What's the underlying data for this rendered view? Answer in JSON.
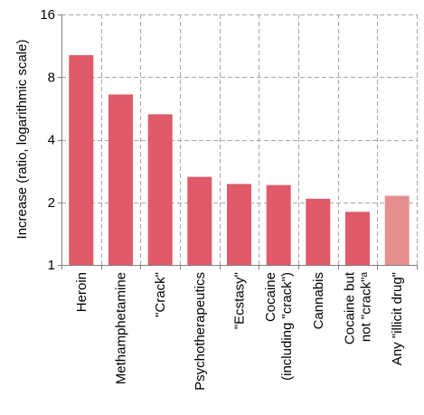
{
  "chart_data": {
    "type": "bar",
    "categories": [
      [
        "Heroin"
      ],
      [
        "Methamphetamine"
      ],
      [
        "\"Crack\""
      ],
      [
        "Psychotherapeutics"
      ],
      [
        "\"Ecstasy\""
      ],
      [
        "Cocaine",
        "(including \"crack\")"
      ],
      [
        "Cannabis"
      ],
      [
        "Cocaine but",
        "not \"crack\"ᵃ"
      ],
      [
        "Any \"illicit drug\""
      ]
    ],
    "values": [
      10.2,
      6.6,
      5.3,
      2.65,
      2.45,
      2.42,
      2.08,
      1.8,
      2.15
    ],
    "title": "",
    "xlabel": "",
    "ylabel": "Increase (ratio, logarithmic scale)",
    "yscale": "log2",
    "ylim": [
      1,
      16
    ],
    "yticks": [
      "1",
      "2",
      "4",
      "8",
      "16"
    ],
    "grid": true,
    "bar_colors": [
      "#e05a69",
      "#e05a69",
      "#e05a69",
      "#e05a69",
      "#e05a69",
      "#e05a69",
      "#e05a69",
      "#e05a69",
      "#e58e8e"
    ]
  }
}
